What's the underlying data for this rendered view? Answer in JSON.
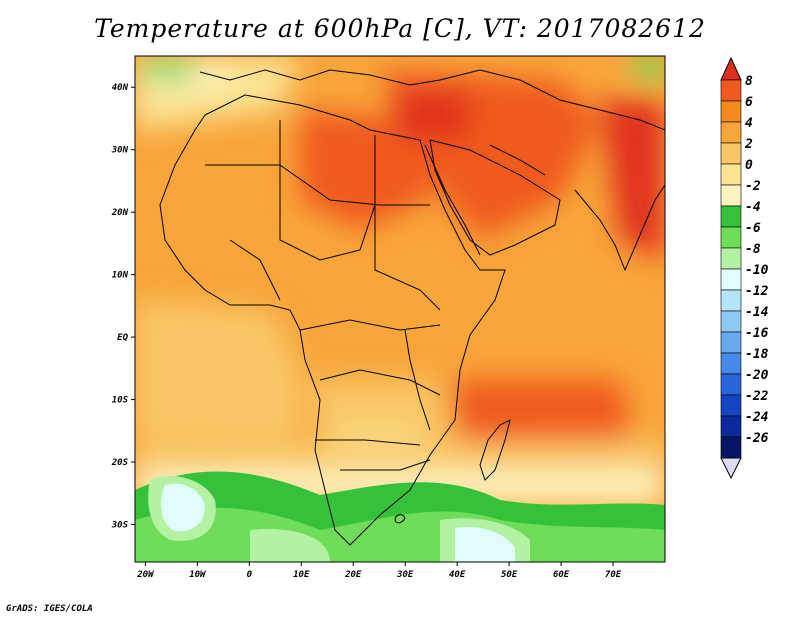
{
  "title": "Temperature at 600hPa [C], VT: 2017082612",
  "footer": "GrADS: IGES/COLA",
  "map": {
    "lon_range": [
      -22,
      80
    ],
    "lat_range": [
      -36,
      45
    ],
    "lon_ticks": [
      "20W",
      "10W",
      "0",
      "10E",
      "20E",
      "30E",
      "40E",
      "50E",
      "60E",
      "70E"
    ],
    "lat_ticks": [
      "40N",
      "30N",
      "20N",
      "10N",
      "EQ",
      "10S",
      "20S",
      "30S"
    ]
  },
  "colorbar": {
    "labels": [
      "8",
      "6",
      "4",
      "2",
      "0",
      "-2",
      "-4",
      "-6",
      "-8",
      "-10",
      "-12",
      "-14",
      "-16",
      "-18",
      "-20",
      "-22",
      "-24",
      "-26"
    ],
    "colors": [
      "#e0301e",
      "#f05a1e",
      "#f58a1e",
      "#f8a53a",
      "#f9c766",
      "#fbe595",
      "#fdf3c0",
      "#35c23a",
      "#6fdc5a",
      "#b3f2a3",
      "#e0fcfb",
      "#b3e4f8",
      "#8ec9f4",
      "#6aa9ee",
      "#4689e6",
      "#2866d8",
      "#1545c2",
      "#0a2a9c",
      "#071568",
      "#dcdcf4"
    ]
  }
}
